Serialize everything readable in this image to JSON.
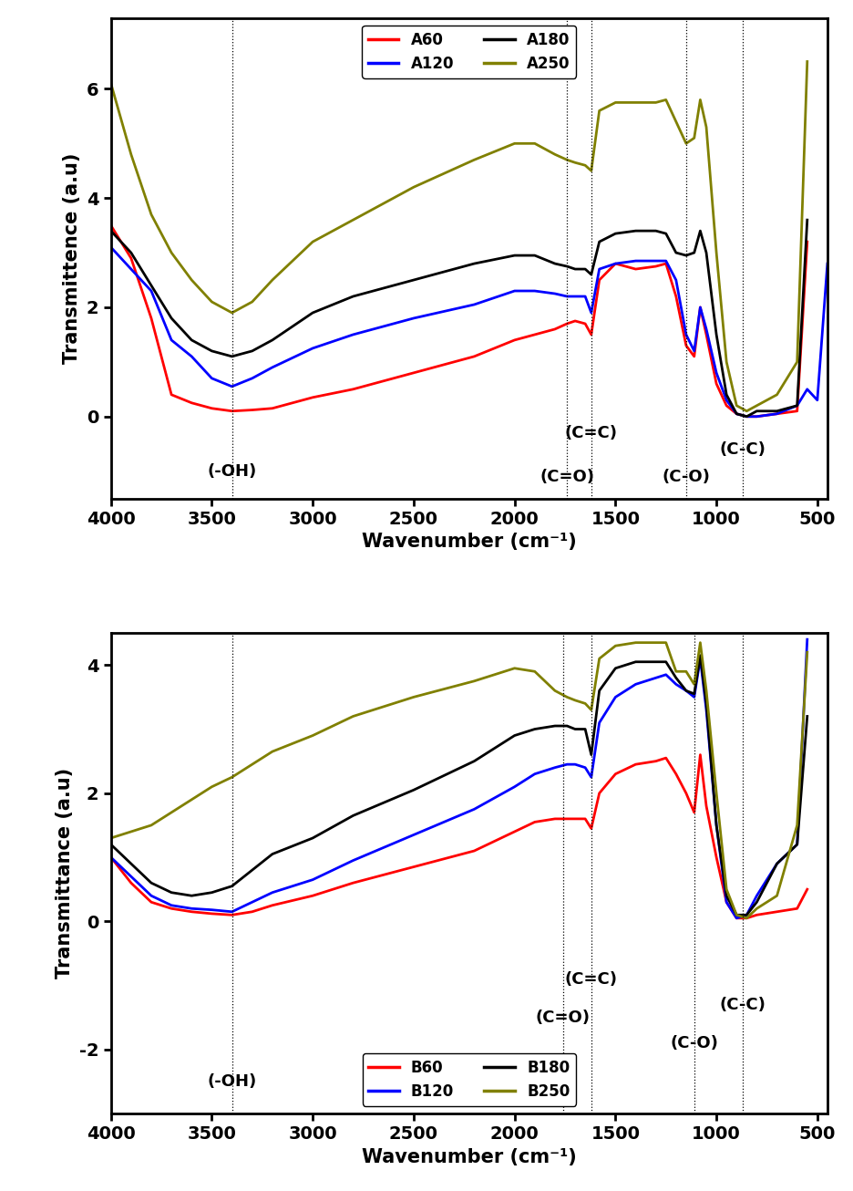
{
  "chart_data": [
    {
      "type": "line",
      "x_label": "Wavenumber (cm⁻¹)",
      "y_label": "Transmittence (a.u)",
      "xlim": [
        4000,
        450
      ],
      "ylim": [
        -1.5,
        7.3
      ],
      "xticks": [
        4000,
        3500,
        3000,
        2500,
        2000,
        1500,
        1000,
        500
      ],
      "yticks": [
        0,
        2,
        4,
        6
      ],
      "legend": "upper center",
      "x": [
        4000,
        3900,
        3800,
        3700,
        3600,
        3500,
        3400,
        3300,
        3200,
        3000,
        2800,
        2500,
        2200,
        2000,
        1900,
        1800,
        1740,
        1700,
        1650,
        1620,
        1580,
        1500,
        1400,
        1300,
        1250,
        1200,
        1150,
        1110,
        1080,
        1050,
        1000,
        950,
        900,
        850,
        800,
        700,
        600,
        550,
        500,
        450
      ],
      "series": [
        {
          "name": "A60",
          "color": "#ff0000",
          "values": [
            3.5,
            2.9,
            1.8,
            0.4,
            0.25,
            0.15,
            0.1,
            0.12,
            0.15,
            0.35,
            0.5,
            0.8,
            1.1,
            1.4,
            1.5,
            1.6,
            1.7,
            1.75,
            1.7,
            1.5,
            2.5,
            2.8,
            2.7,
            2.75,
            2.8,
            2.2,
            1.3,
            1.1,
            2.0,
            1.5,
            0.6,
            0.2,
            0.05,
            0.0,
            0.0,
            0.05,
            0.1,
            3.2,
            null,
            null
          ]
        },
        {
          "name": "A120",
          "color": "#0000ff",
          "values": [
            3.1,
            2.7,
            2.3,
            1.4,
            1.1,
            0.7,
            0.55,
            0.7,
            0.9,
            1.25,
            1.5,
            1.8,
            2.05,
            2.3,
            2.3,
            2.25,
            2.2,
            2.2,
            2.2,
            1.9,
            2.7,
            2.8,
            2.85,
            2.85,
            2.85,
            2.5,
            1.5,
            1.2,
            2.0,
            1.6,
            0.8,
            0.3,
            0.05,
            0.0,
            0.0,
            0.05,
            0.2,
            0.5,
            0.3,
            2.8
          ]
        },
        {
          "name": "A180",
          "color": "#000000",
          "values": [
            3.4,
            3.0,
            2.4,
            1.8,
            1.4,
            1.2,
            1.1,
            1.2,
            1.4,
            1.9,
            2.2,
            2.5,
            2.8,
            2.95,
            2.95,
            2.8,
            2.75,
            2.7,
            2.7,
            2.6,
            3.2,
            3.35,
            3.4,
            3.4,
            3.35,
            3.0,
            2.95,
            3.0,
            3.4,
            3.0,
            1.5,
            0.4,
            0.05,
            0.0,
            0.1,
            0.1,
            0.2,
            3.6,
            null,
            null
          ]
        },
        {
          "name": "A250",
          "color": "#808000",
          "values": [
            6.1,
            4.8,
            3.7,
            3.0,
            2.5,
            2.1,
            1.9,
            2.1,
            2.5,
            3.2,
            3.6,
            4.2,
            4.7,
            5.0,
            5.0,
            4.8,
            4.7,
            4.65,
            4.6,
            4.5,
            5.6,
            5.75,
            5.75,
            5.75,
            5.8,
            5.4,
            5.0,
            5.1,
            5.8,
            5.3,
            3.0,
            1.0,
            0.2,
            0.1,
            0.2,
            0.4,
            1.0,
            6.5,
            null,
            null
          ]
        }
      ],
      "annotations": [
        {
          "text": "(-OH)",
          "x": 3400,
          "y": -1.0
        },
        {
          "text": "(C=O)",
          "x": 1740,
          "y": -1.1
        },
        {
          "text": "(C=C)",
          "x": 1620,
          "y": -0.3
        },
        {
          "text": "(C-O)",
          "x": 1150,
          "y": -1.1
        },
        {
          "text": "(C-C)",
          "x": 870,
          "y": -0.6
        }
      ]
    },
    {
      "type": "line",
      "x_label": "Wavenumber (cm⁻¹)",
      "y_label": "Transmittance (a.u)",
      "xlim": [
        4000,
        450
      ],
      "ylim": [
        -3,
        4.5
      ],
      "xticks": [
        4000,
        3500,
        3000,
        2500,
        2000,
        1500,
        1000,
        500
      ],
      "yticks": [
        -2,
        0,
        2,
        4
      ],
      "legend": "lower center",
      "x": [
        4000,
        3900,
        3800,
        3700,
        3600,
        3500,
        3400,
        3300,
        3200,
        3000,
        2800,
        2500,
        2200,
        2000,
        1900,
        1800,
        1740,
        1700,
        1650,
        1620,
        1580,
        1500,
        1400,
        1300,
        1250,
        1200,
        1150,
        1110,
        1080,
        1050,
        1000,
        950,
        900,
        850,
        800,
        700,
        600,
        550,
        500,
        450
      ],
      "series": [
        {
          "name": "B60",
          "color": "#ff0000",
          "values": [
            1.0,
            0.6,
            0.3,
            0.2,
            0.15,
            0.12,
            0.1,
            0.15,
            0.25,
            0.4,
            0.6,
            0.85,
            1.1,
            1.4,
            1.55,
            1.6,
            1.6,
            1.6,
            1.6,
            1.45,
            2.0,
            2.3,
            2.45,
            2.5,
            2.55,
            2.3,
            2.0,
            1.7,
            2.6,
            1.8,
            1.0,
            0.3,
            0.05,
            0.05,
            0.1,
            0.15,
            0.2,
            0.5,
            null,
            null
          ]
        },
        {
          "name": "B120",
          "color": "#0000ff",
          "values": [
            1.0,
            0.7,
            0.4,
            0.25,
            0.2,
            0.18,
            0.15,
            0.3,
            0.45,
            0.65,
            0.95,
            1.35,
            1.75,
            2.1,
            2.3,
            2.4,
            2.45,
            2.45,
            2.4,
            2.25,
            3.1,
            3.5,
            3.7,
            3.8,
            3.85,
            3.7,
            3.6,
            3.5,
            4.1,
            3.3,
            1.5,
            0.3,
            0.05,
            0.1,
            0.4,
            0.9,
            1.2,
            4.4,
            null,
            null
          ]
        },
        {
          "name": "B180",
          "color": "#000000",
          "values": [
            1.2,
            0.9,
            0.6,
            0.45,
            0.4,
            0.45,
            0.55,
            0.8,
            1.05,
            1.3,
            1.65,
            2.05,
            2.5,
            2.9,
            3.0,
            3.05,
            3.05,
            3.0,
            3.0,
            2.6,
            3.6,
            3.95,
            4.05,
            4.05,
            4.05,
            3.8,
            3.6,
            3.55,
            4.15,
            3.4,
            1.5,
            0.4,
            0.1,
            0.1,
            0.3,
            0.9,
            1.2,
            3.2,
            null,
            null
          ]
        },
        {
          "name": "B250",
          "color": "#808000",
          "values": [
            1.3,
            1.4,
            1.5,
            1.7,
            1.9,
            2.1,
            2.25,
            2.45,
            2.65,
            2.9,
            3.2,
            3.5,
            3.75,
            3.95,
            3.9,
            3.6,
            3.5,
            3.45,
            3.4,
            3.3,
            4.1,
            4.3,
            4.35,
            4.35,
            4.35,
            3.9,
            3.9,
            3.7,
            4.35,
            3.6,
            2.0,
            0.5,
            0.1,
            0.05,
            0.2,
            0.4,
            1.5,
            4.2,
            null,
            null
          ]
        }
      ],
      "annotations": [
        {
          "text": "(-OH)",
          "x": 3400,
          "y": -2.5
        },
        {
          "text": "(C=O)",
          "x": 1760,
          "y": -1.5
        },
        {
          "text": "(C=C)",
          "x": 1620,
          "y": -0.9
        },
        {
          "text": "(C-O)",
          "x": 1110,
          "y": -1.9
        },
        {
          "text": "(C-C)",
          "x": 870,
          "y": -1.3
        }
      ]
    }
  ]
}
